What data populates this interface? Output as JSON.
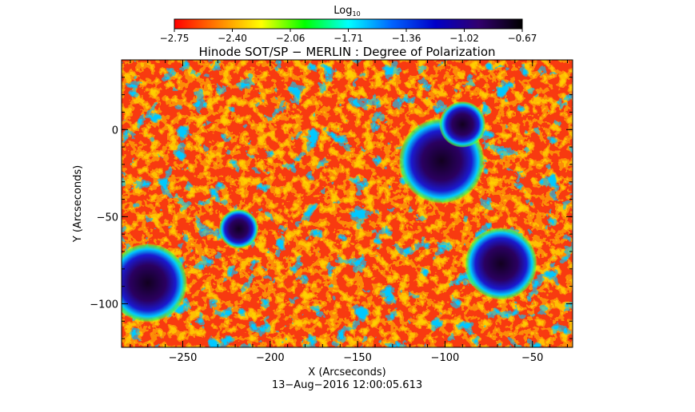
{
  "colorbar": {
    "label_main": "Log",
    "label_sub": "10",
    "ticks": [
      "−2.75",
      "−2.40",
      "−2.06",
      "−1.71",
      "−1.36",
      "−1.02",
      "−0.67"
    ],
    "min": -2.75,
    "max": -0.67,
    "colormap": [
      "#ff0000",
      "#ff8000",
      "#ffff00",
      "#00ff00",
      "#00ffff",
      "#0064ff",
      "#0000c8",
      "#32006e",
      "#000000"
    ]
  },
  "plot": {
    "title": "Hinode SOT/SP − MERLIN : Degree of Polarization",
    "xlabel": "X (Arcseconds)",
    "ylabel": "Y (Arcseconds)",
    "xlim": [
      -285,
      -27
    ],
    "ylim": [
      -125,
      40
    ],
    "x_ticks": [
      {
        "value": -250,
        "label": "−250"
      },
      {
        "value": -200,
        "label": "−200"
      },
      {
        "value": -150,
        "label": "−150"
      },
      {
        "value": -100,
        "label": "−100"
      },
      {
        "value": -50,
        "label": "−50"
      }
    ],
    "y_ticks": [
      {
        "value": 0,
        "label": "0"
      },
      {
        "value": -50,
        "label": "−50"
      },
      {
        "value": -100,
        "label": "−100"
      }
    ]
  },
  "timestamp": "13−Aug−2016 12:00:05.613",
  "sunspots": [
    {
      "x": -102,
      "y": -18,
      "r": 13
    },
    {
      "x": -90,
      "y": 3,
      "r": 7
    },
    {
      "x": -68,
      "y": -77,
      "r": 11
    },
    {
      "x": -218,
      "y": -57,
      "r": 6
    },
    {
      "x": -270,
      "y": -88,
      "r": 12
    }
  ]
}
